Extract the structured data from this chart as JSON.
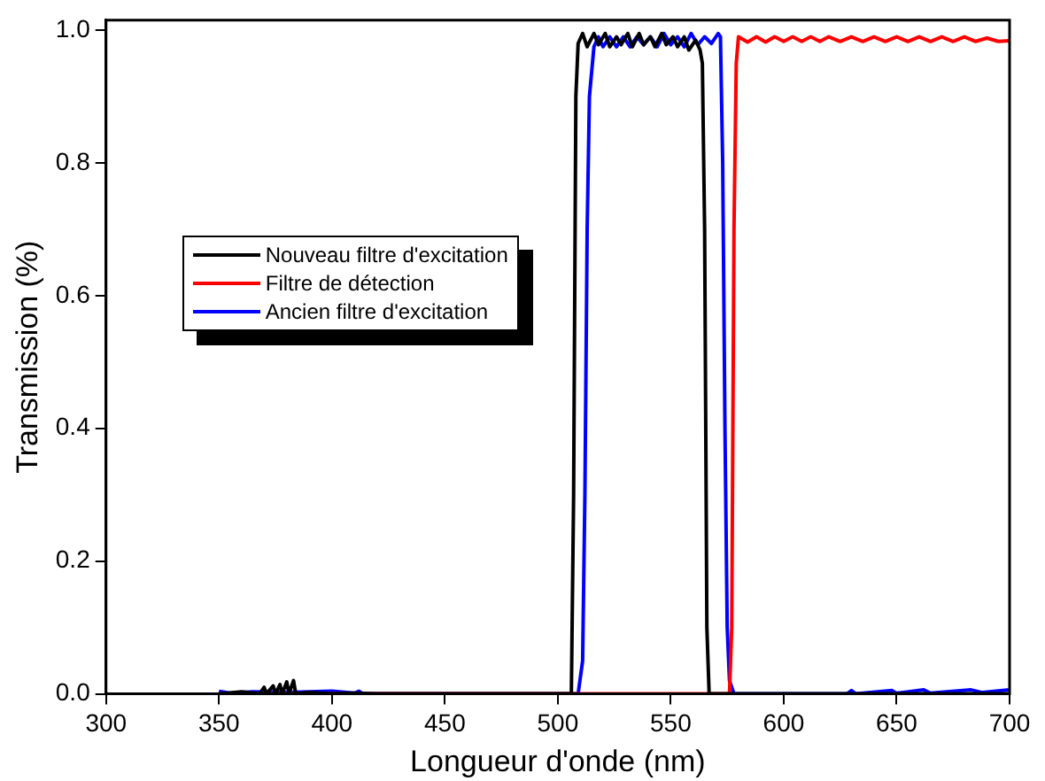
{
  "chart_data": {
    "type": "line",
    "xlabel": "Longueur d'onde (nm)",
    "ylabel": "Transmission (%)",
    "xlim": [
      300,
      700
    ],
    "xticks": [
      300,
      350,
      400,
      450,
      500,
      550,
      600,
      650,
      700
    ],
    "ylim": [
      0,
      1.015
    ],
    "yticks": [
      {
        "value": 0,
        "label": "0.0"
      },
      {
        "value": 0.2,
        "label": "0.2"
      },
      {
        "value": 0.4,
        "label": "0.4"
      },
      {
        "value": 0.6,
        "label": "0.6"
      },
      {
        "value": 0.8,
        "label": "0.8"
      },
      {
        "value": 1,
        "label": "1.0"
      }
    ],
    "grid": false,
    "legend": "top left",
    "marker": "none",
    "line_style": "solid",
    "series": [
      {
        "name": "Nouveau filtre d'excitation",
        "color": "#000000",
        "x": [
          350,
          360,
          368,
          370,
          371,
          374,
          375,
          377,
          378,
          380,
          381,
          383,
          384,
          390,
          400,
          410,
          420,
          500,
          506,
          507,
          508,
          509,
          511,
          513,
          516,
          518,
          521,
          523,
          526,
          528,
          531,
          533,
          536,
          538,
          541,
          543,
          546,
          548,
          551,
          553,
          556,
          558,
          561,
          563,
          564,
          565,
          566,
          567,
          580,
          700
        ],
        "values": [
          0,
          0.003,
          0,
          0.01,
          0,
          0.012,
          0,
          0.014,
          0,
          0.018,
          0,
          0.02,
          0,
          0.002,
          0,
          0.001,
          0,
          0,
          0,
          0.3,
          0.9,
          0.98,
          0.995,
          0.975,
          0.995,
          0.978,
          0.995,
          0.975,
          0.99,
          0.978,
          0.995,
          0.975,
          0.995,
          0.978,
          0.99,
          0.975,
          0.995,
          0.978,
          0.99,
          0.975,
          0.99,
          0.97,
          0.985,
          0.97,
          0.95,
          0.7,
          0.1,
          0,
          0,
          0
        ]
      },
      {
        "name": "Filtre de détection",
        "color": "#ff0000",
        "x": [
          350,
          576,
          577,
          578,
          579,
          580,
          584,
          588,
          592,
          596,
          600,
          604,
          608,
          612,
          616,
          620,
          625,
          630,
          635,
          640,
          645,
          650,
          655,
          660,
          665,
          670,
          675,
          680,
          685,
          690,
          695,
          700
        ],
        "values": [
          0,
          0,
          0.1,
          0.7,
          0.95,
          0.99,
          0.982,
          0.99,
          0.982,
          0.99,
          0.983,
          0.99,
          0.983,
          0.99,
          0.983,
          0.99,
          0.983,
          0.99,
          0.983,
          0.99,
          0.983,
          0.99,
          0.983,
          0.99,
          0.983,
          0.99,
          0.983,
          0.99,
          0.983,
          0.988,
          0.983,
          0.984
        ]
      },
      {
        "name": "Ancien filtre d'excitation",
        "color": "#0000ff",
        "x": [
          350,
          355,
          365,
          380,
          400,
          410,
          412,
          414,
          509,
          511,
          512,
          513,
          514,
          516,
          518,
          520,
          523,
          526,
          529,
          532,
          535,
          538,
          541,
          544,
          547,
          550,
          553,
          556,
          559,
          562,
          565,
          568,
          571,
          572,
          573,
          574,
          575,
          576,
          578,
          628,
          630,
          632,
          648,
          650,
          662,
          665,
          683,
          688,
          700
        ],
        "values": [
          0.004,
          0.001,
          0.003,
          0.002,
          0.004,
          0.001,
          0.004,
          0,
          0,
          0.05,
          0.3,
          0.7,
          0.9,
          0.975,
          0.99,
          0.975,
          0.99,
          0.975,
          0.99,
          0.975,
          0.99,
          0.978,
          0.99,
          0.975,
          0.995,
          0.978,
          0.99,
          0.975,
          0.995,
          0.978,
          0.99,
          0.98,
          0.995,
          0.99,
          0.8,
          0.4,
          0.1,
          0.02,
          0,
          0,
          0.005,
          0,
          0.005,
          0.001,
          0.006,
          0.001,
          0.006,
          0.002,
          0.006
        ]
      }
    ]
  }
}
